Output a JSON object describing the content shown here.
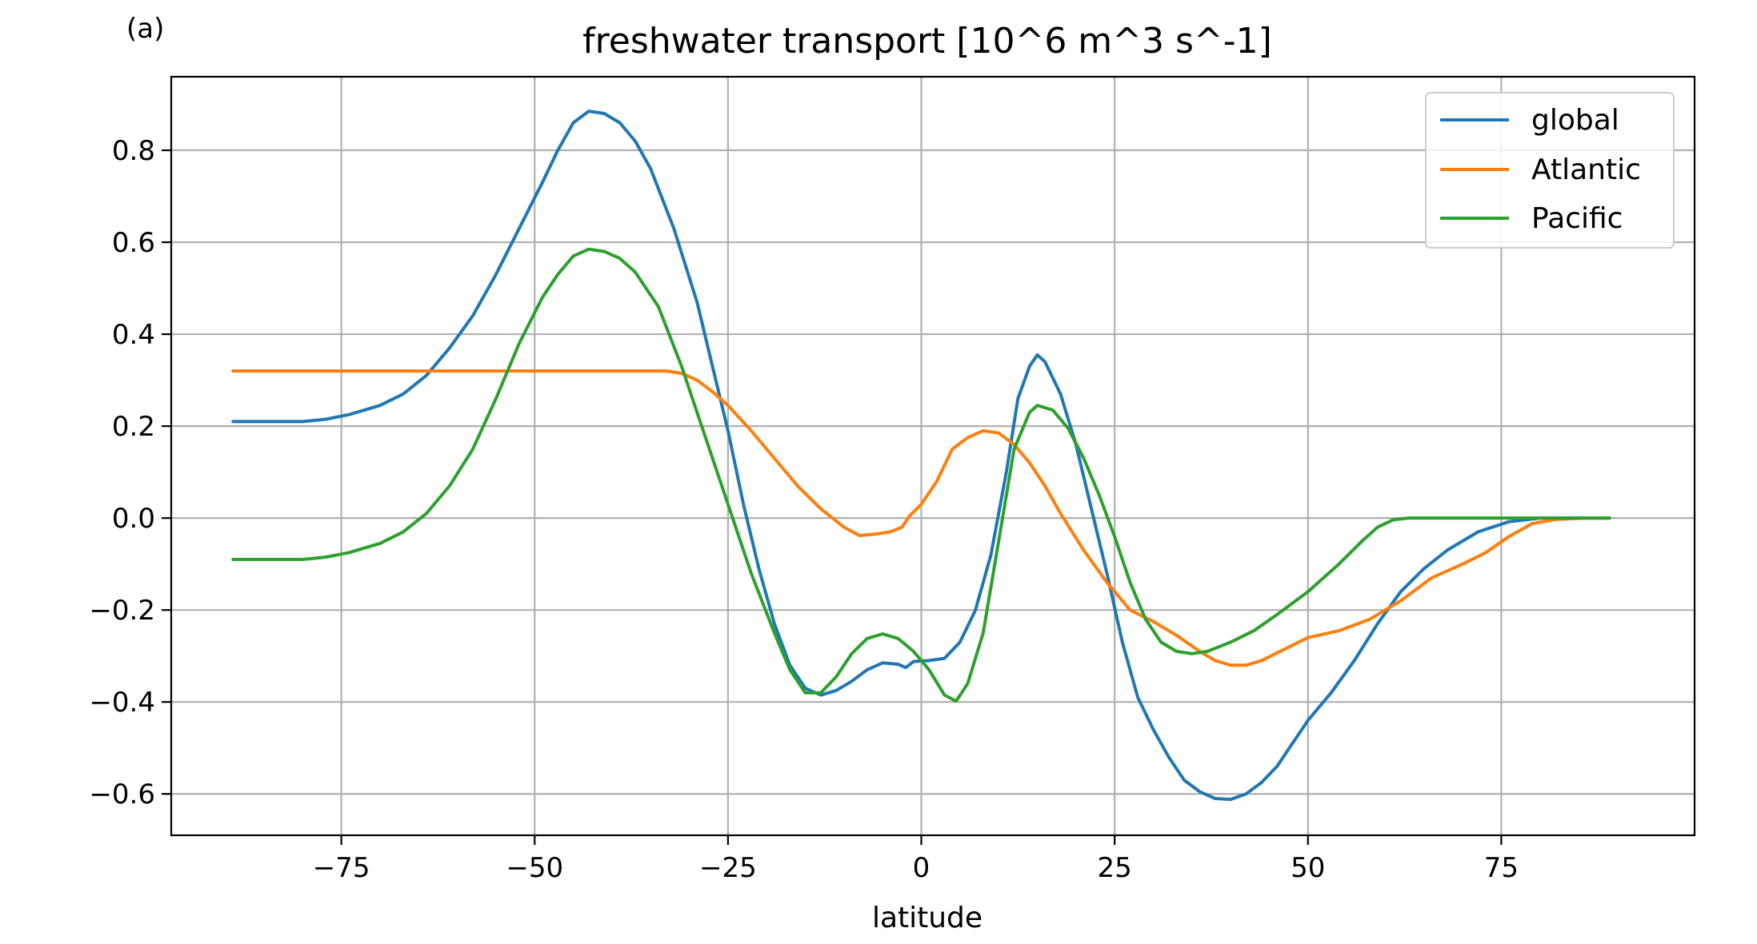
{
  "panel_label": "(a)",
  "chart_data": {
    "type": "line",
    "title": "freshwater transport [10^6 m^3 s^-1]",
    "xlabel": "latitude",
    "ylabel": "",
    "xlim": [
      -97,
      100
    ],
    "ylim": [
      -0.69,
      0.96
    ],
    "xticks": [
      -75,
      -50,
      -25,
      0,
      25,
      50,
      75
    ],
    "xtick_labels": [
      "−75",
      "−50",
      "−25",
      "0",
      "25",
      "50",
      "75"
    ],
    "yticks": [
      -0.6,
      -0.4,
      -0.2,
      0.0,
      0.2,
      0.4,
      0.6,
      0.8
    ],
    "ytick_labels": [
      "−0.6",
      "−0.4",
      "−0.2",
      "0.0",
      "0.2",
      "0.4",
      "0.6",
      "0.8"
    ],
    "grid": true,
    "legend_position": "top-right",
    "series": [
      {
        "name": "global",
        "color": "#1f77b4",
        "points": [
          [
            -89,
            0.21
          ],
          [
            -85,
            0.21
          ],
          [
            -80,
            0.21
          ],
          [
            -77,
            0.215
          ],
          [
            -74,
            0.225
          ],
          [
            -70,
            0.245
          ],
          [
            -67,
            0.27
          ],
          [
            -64,
            0.31
          ],
          [
            -61,
            0.37
          ],
          [
            -58,
            0.44
          ],
          [
            -55,
            0.53
          ],
          [
            -52,
            0.63
          ],
          [
            -49,
            0.73
          ],
          [
            -47,
            0.8
          ],
          [
            -45,
            0.86
          ],
          [
            -43,
            0.885
          ],
          [
            -41,
            0.88
          ],
          [
            -39,
            0.86
          ],
          [
            -37,
            0.82
          ],
          [
            -35,
            0.76
          ],
          [
            -32,
            0.63
          ],
          [
            -29,
            0.47
          ],
          [
            -27,
            0.33
          ],
          [
            -25,
            0.19
          ],
          [
            -23,
            0.03
          ],
          [
            -21,
            -0.11
          ],
          [
            -19,
            -0.23
          ],
          [
            -17,
            -0.32
          ],
          [
            -15,
            -0.37
          ],
          [
            -13,
            -0.385
          ],
          [
            -11,
            -0.375
          ],
          [
            -9,
            -0.355
          ],
          [
            -7,
            -0.33
          ],
          [
            -5,
            -0.315
          ],
          [
            -3,
            -0.318
          ],
          [
            -2,
            -0.325
          ],
          [
            -1,
            -0.312
          ],
          [
            1,
            -0.31
          ],
          [
            3,
            -0.305
          ],
          [
            5,
            -0.27
          ],
          [
            7,
            -0.2
          ],
          [
            9,
            -0.08
          ],
          [
            11,
            0.1
          ],
          [
            12.5,
            0.26
          ],
          [
            14,
            0.33
          ],
          [
            15,
            0.355
          ],
          [
            16,
            0.34
          ],
          [
            18,
            0.27
          ],
          [
            20,
            0.16
          ],
          [
            22,
            0.02
          ],
          [
            24,
            -0.12
          ],
          [
            26,
            -0.27
          ],
          [
            28,
            -0.39
          ],
          [
            30,
            -0.46
          ],
          [
            32,
            -0.52
          ],
          [
            34,
            -0.57
          ],
          [
            36,
            -0.595
          ],
          [
            38,
            -0.61
          ],
          [
            40,
            -0.612
          ],
          [
            42,
            -0.6
          ],
          [
            44,
            -0.575
          ],
          [
            46,
            -0.54
          ],
          [
            48,
            -0.49
          ],
          [
            50,
            -0.44
          ],
          [
            53,
            -0.38
          ],
          [
            56,
            -0.31
          ],
          [
            59,
            -0.23
          ],
          [
            62,
            -0.16
          ],
          [
            65,
            -0.11
          ],
          [
            68,
            -0.07
          ],
          [
            72,
            -0.03
          ],
          [
            76,
            -0.008
          ],
          [
            80,
            0
          ],
          [
            85,
            0
          ],
          [
            89,
            0
          ]
        ]
      },
      {
        "name": "Atlantic",
        "color": "#ff7f0e",
        "points": [
          [
            -89,
            0.32
          ],
          [
            -80,
            0.32
          ],
          [
            -70,
            0.32
          ],
          [
            -60,
            0.32
          ],
          [
            -50,
            0.32
          ],
          [
            -40,
            0.32
          ],
          [
            -33,
            0.32
          ],
          [
            -31,
            0.315
          ],
          [
            -29,
            0.3
          ],
          [
            -27,
            0.275
          ],
          [
            -25,
            0.245
          ],
          [
            -22,
            0.19
          ],
          [
            -19,
            0.13
          ],
          [
            -16,
            0.07
          ],
          [
            -13,
            0.02
          ],
          [
            -10,
            -0.02
          ],
          [
            -8,
            -0.038
          ],
          [
            -6,
            -0.035
          ],
          [
            -4,
            -0.03
          ],
          [
            -2.5,
            -0.02
          ],
          [
            -1.5,
            0.005
          ],
          [
            0,
            0.03
          ],
          [
            2,
            0.08
          ],
          [
            4,
            0.15
          ],
          [
            6,
            0.175
          ],
          [
            8,
            0.19
          ],
          [
            10,
            0.185
          ],
          [
            12,
            0.16
          ],
          [
            14,
            0.12
          ],
          [
            16,
            0.07
          ],
          [
            18,
            0.01
          ],
          [
            21,
            -0.07
          ],
          [
            24,
            -0.14
          ],
          [
            27,
            -0.2
          ],
          [
            30,
            -0.225
          ],
          [
            33,
            -0.255
          ],
          [
            36,
            -0.29
          ],
          [
            38,
            -0.31
          ],
          [
            40,
            -0.32
          ],
          [
            42,
            -0.32
          ],
          [
            44,
            -0.31
          ],
          [
            47,
            -0.285
          ],
          [
            50,
            -0.26
          ],
          [
            54,
            -0.245
          ],
          [
            58,
            -0.22
          ],
          [
            62,
            -0.18
          ],
          [
            66,
            -0.13
          ],
          [
            70,
            -0.1
          ],
          [
            73,
            -0.075
          ],
          [
            76,
            -0.04
          ],
          [
            79,
            -0.012
          ],
          [
            82,
            -0.003
          ],
          [
            86,
            0
          ],
          [
            89,
            0
          ]
        ]
      },
      {
        "name": "Pacific",
        "color": "#2ca02c",
        "points": [
          [
            -89,
            -0.09
          ],
          [
            -85,
            -0.09
          ],
          [
            -80,
            -0.09
          ],
          [
            -77,
            -0.085
          ],
          [
            -74,
            -0.075
          ],
          [
            -70,
            -0.055
          ],
          [
            -67,
            -0.03
          ],
          [
            -64,
            0.01
          ],
          [
            -61,
            0.07
          ],
          [
            -58,
            0.15
          ],
          [
            -55,
            0.26
          ],
          [
            -52,
            0.38
          ],
          [
            -49,
            0.48
          ],
          [
            -47,
            0.53
          ],
          [
            -45,
            0.57
          ],
          [
            -43,
            0.585
          ],
          [
            -41,
            0.58
          ],
          [
            -39,
            0.565
          ],
          [
            -37,
            0.535
          ],
          [
            -34,
            0.46
          ],
          [
            -31,
            0.33
          ],
          [
            -28,
            0.18
          ],
          [
            -25,
            0.03
          ],
          [
            -22,
            -0.12
          ],
          [
            -19,
            -0.25
          ],
          [
            -17,
            -0.33
          ],
          [
            -15,
            -0.38
          ],
          [
            -13,
            -0.38
          ],
          [
            -11,
            -0.345
          ],
          [
            -9,
            -0.295
          ],
          [
            -7,
            -0.262
          ],
          [
            -5,
            -0.252
          ],
          [
            -3,
            -0.262
          ],
          [
            -1,
            -0.29
          ],
          [
            1,
            -0.33
          ],
          [
            3,
            -0.385
          ],
          [
            4.5,
            -0.398
          ],
          [
            6,
            -0.36
          ],
          [
            8,
            -0.25
          ],
          [
            10,
            -0.05
          ],
          [
            12,
            0.15
          ],
          [
            14,
            0.23
          ],
          [
            15,
            0.245
          ],
          [
            17,
            0.235
          ],
          [
            19,
            0.195
          ],
          [
            21,
            0.13
          ],
          [
            23,
            0.05
          ],
          [
            25,
            -0.04
          ],
          [
            27,
            -0.14
          ],
          [
            29,
            -0.22
          ],
          [
            31,
            -0.27
          ],
          [
            33,
            -0.29
          ],
          [
            35,
            -0.295
          ],
          [
            37,
            -0.29
          ],
          [
            40,
            -0.27
          ],
          [
            43,
            -0.245
          ],
          [
            46,
            -0.21
          ],
          [
            50,
            -0.16
          ],
          [
            54,
            -0.1
          ],
          [
            57,
            -0.05
          ],
          [
            59,
            -0.02
          ],
          [
            61,
            -0.004
          ],
          [
            63,
            0
          ],
          [
            70,
            0
          ],
          [
            80,
            0
          ],
          [
            89,
            0
          ]
        ]
      }
    ]
  }
}
